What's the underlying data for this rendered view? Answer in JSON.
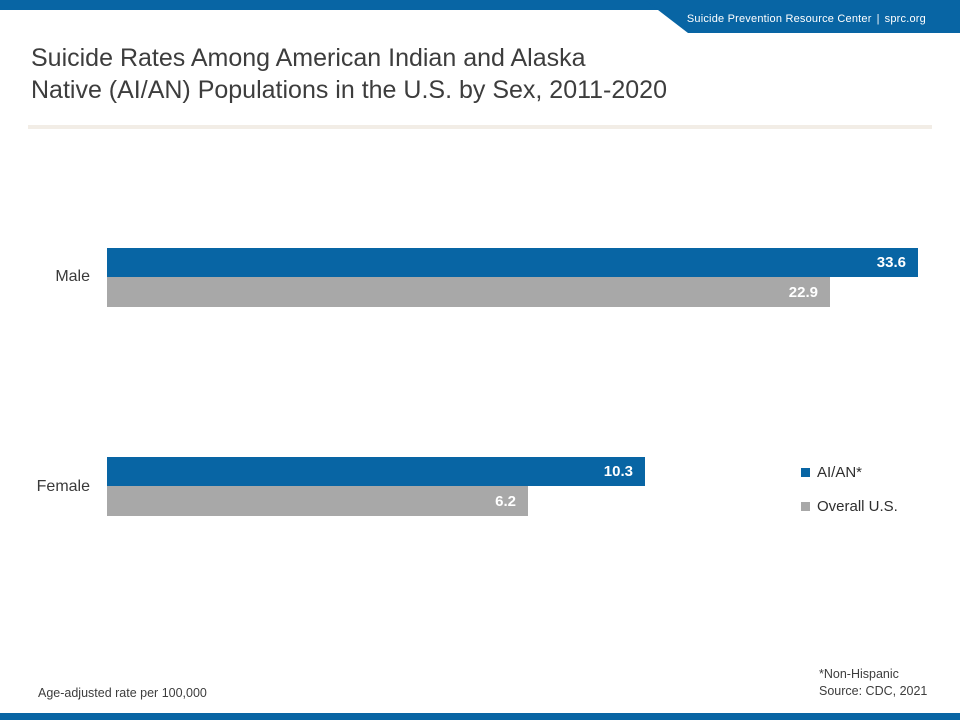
{
  "banner": {
    "org": "Suicide Prevention Resource Center",
    "separator": "|",
    "site": "sprc.org"
  },
  "title": {
    "line1": "Suicide Rates Among American Indian and Alaska",
    "line2": "Native (AI/AN) Populations in the U.S. by Sex, 2011-2020"
  },
  "chart_data": {
    "type": "bar",
    "orientation": "horizontal",
    "title": "Suicide Rates Among American Indian and Alaska Native (AI/AN) Populations in the U.S. by Sex, 2011-2020",
    "categories": [
      "Male",
      "Female"
    ],
    "series": [
      {
        "name": "AI/AN*",
        "color": "#0865a4",
        "values": [
          33.6,
          10.3
        ]
      },
      {
        "name": "Overall U.S.",
        "color": "#a8a8a8",
        "values": [
          22.9,
          6.2
        ]
      }
    ],
    "value_labels": true,
    "unit_note": "Age-adjusted rate per 100,000",
    "legend_position": "right",
    "bar_length_scale": "log10",
    "grid": false
  },
  "footnotes": {
    "left": "Age-adjusted rate per 100,000",
    "right_line1": "*Non-Hispanic",
    "right_line2": "Source: CDC, 2021"
  },
  "colors": {
    "brand_blue": "#0865a4",
    "bar_gray": "#a8a8a8",
    "divider": "#f2ede6",
    "text_dark": "#3d3d3d"
  }
}
